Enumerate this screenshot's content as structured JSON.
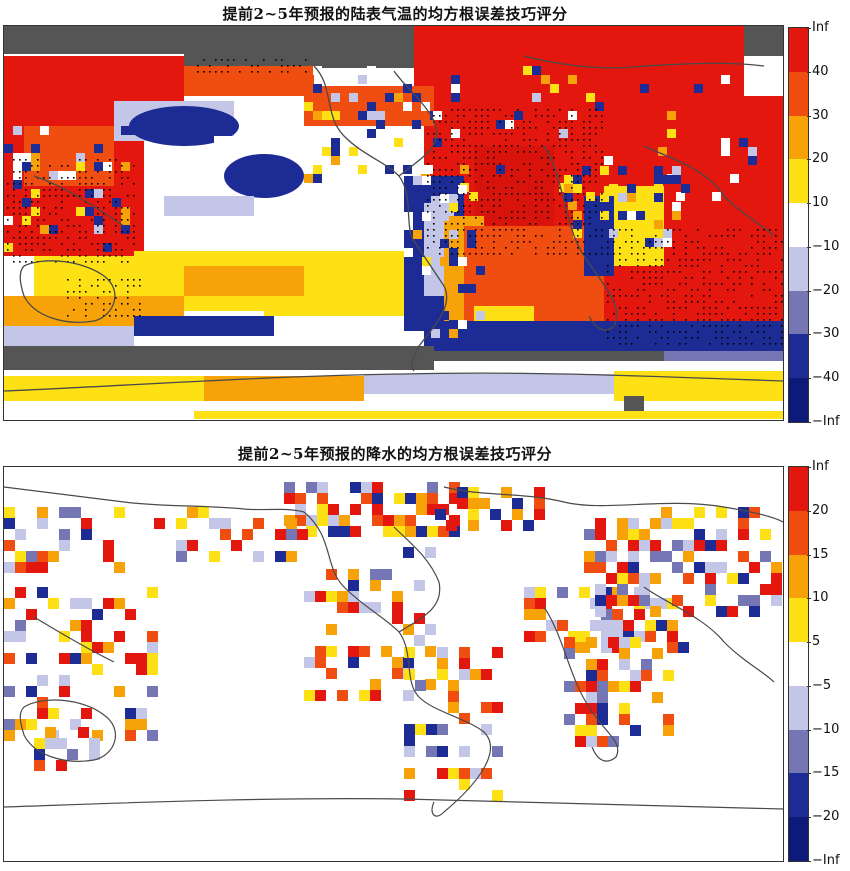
{
  "panels": [
    {
      "title": "提前2~5年预报的陆表气温的均方根误差技巧评分",
      "legend_ticks": [
        "Inf",
        "40",
        "30",
        "20",
        "10",
        "−10",
        "−20",
        "−30",
        "−40",
        "−Inf"
      ],
      "legend_colors": [
        "#e4170f",
        "#f04e10",
        "#f8a20a",
        "#fde114",
        "#ffffff",
        "#c3c6e6",
        "#7477b4",
        "#1d2b94",
        "#0e1a7a"
      ],
      "nodata_color": "#555555",
      "significance_marker": "black-dots"
    },
    {
      "title": "提前2~5年预报的降水的均方根误差技巧评分",
      "legend_ticks": [
        "Inf",
        "20",
        "15",
        "10",
        "5",
        "−5",
        "−10",
        "−15",
        "−20",
        "−Inf"
      ],
      "legend_colors": [
        "#e4170f",
        "#f04e10",
        "#f8a20a",
        "#fde114",
        "#ffffff",
        "#c3c6e6",
        "#7477b4",
        "#1d2b94",
        "#0e1a7a"
      ]
    }
  ],
  "colors": {
    "coast": "#4a4a4a",
    "border": "#333333"
  }
}
